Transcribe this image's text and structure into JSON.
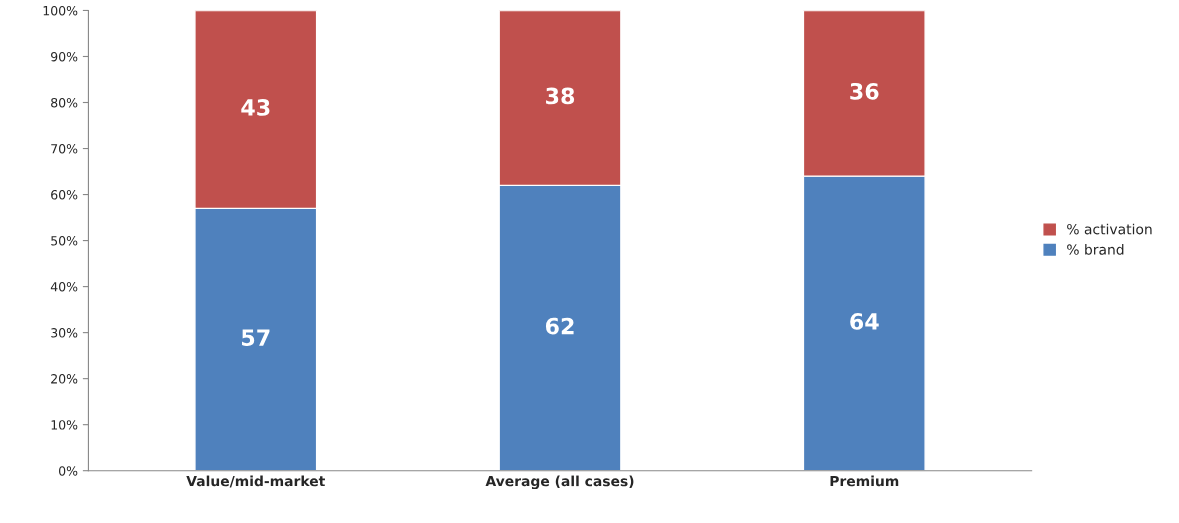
{
  "chart_data": {
    "type": "bar",
    "stacked": true,
    "categories": [
      "Value/mid-market",
      "Average (all cases)",
      "Premium"
    ],
    "series": [
      {
        "name": "% brand",
        "color": "#4f81bd",
        "values": [
          57,
          62,
          64
        ]
      },
      {
        "name": "% activation",
        "color": "#c0504d",
        "values": [
          43,
          38,
          36
        ]
      }
    ],
    "ylim": [
      0,
      100
    ],
    "yticks": [
      {
        "value": 0,
        "label": "0%"
      },
      {
        "value": 10,
        "label": "10%"
      },
      {
        "value": 20,
        "label": "20%"
      },
      {
        "value": 30,
        "label": "30%"
      },
      {
        "value": 40,
        "label": "40%"
      },
      {
        "value": 50,
        "label": "50%"
      },
      {
        "value": 60,
        "label": "60%"
      },
      {
        "value": 70,
        "label": "70%"
      },
      {
        "value": 80,
        "label": "80%"
      },
      {
        "value": 90,
        "label": "90%"
      },
      {
        "value": 100,
        "label": "100%"
      }
    ],
    "data_labels": true,
    "legend": "right",
    "grid": false
  }
}
